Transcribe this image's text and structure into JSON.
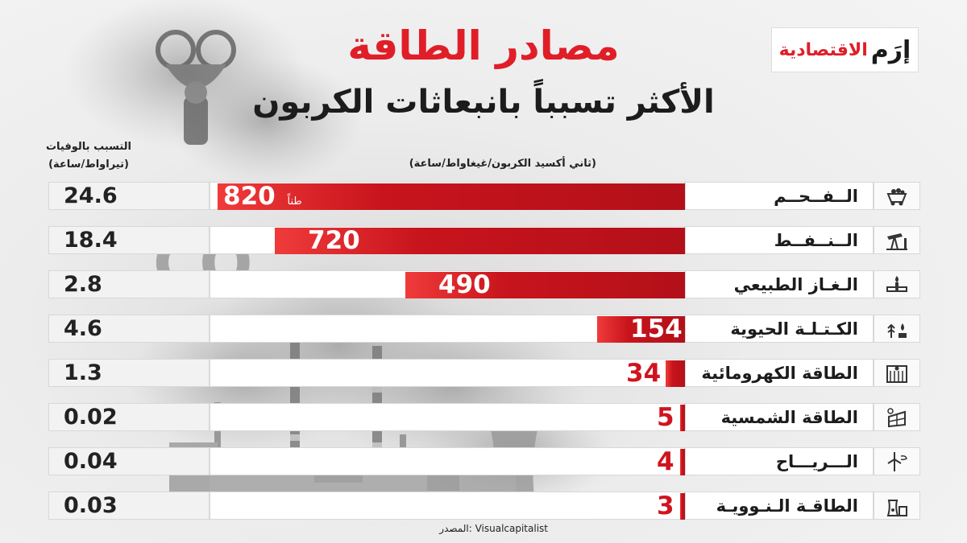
{
  "header": {
    "title": "مصادر الطاقة",
    "subtitle": "الأكثر تسبباً بانبعاثات الكربون",
    "logo_main": "إرَم",
    "logo_sub": "الاقتصادية"
  },
  "axis_labels": {
    "deaths_line1": "التسبب بالوفيات",
    "deaths_line2": "(تيراواط/ساعة)",
    "emissions": "(ثاني أكسيد الكربون/غيغاواط/ساعة)"
  },
  "decor": {
    "co2_text": "CO",
    "co2_sub": "2"
  },
  "source_text": "المصدر: Visualcapitalist",
  "unit_label": "طناً",
  "colors": {
    "bar": "#c8141c",
    "title": "#e01e28"
  },
  "chart_data": {
    "type": "bar",
    "categories": [
      "الــفــحــم",
      "الــنــفــط",
      "الـغـاز الطبيعي",
      "الكـتـلـة الحيوية",
      "الطاقة الكهرومائية",
      "الطاقة الشمسية",
      "الـــريـــاح",
      "الطاقـة الـنـوويـة"
    ],
    "icons": [
      "coal-cart-icon",
      "oil-pump-icon",
      "gas-valve-icon",
      "biomass-icon",
      "hydro-dam-icon",
      "solar-panel-icon",
      "wind-turbine-icon",
      "nuclear-plant-icon"
    ],
    "series": [
      {
        "values": [
          820,
          720,
          490,
          154,
          34,
          5,
          4,
          3
        ]
      },
      {
        "values": [
          24.6,
          18.4,
          2.8,
          4.6,
          1.3,
          0.02,
          0.04,
          0.03
        ]
      }
    ],
    "emission_labels": [
      "820",
      "720",
      "490",
      "154",
      "34",
      "5",
      "4",
      "3"
    ],
    "death_labels": [
      "24.6",
      "18.4",
      "2.8",
      "4.6",
      "1.3",
      "0.02",
      "0.04",
      "0.03"
    ],
    "xlim": [
      0,
      820
    ]
  }
}
